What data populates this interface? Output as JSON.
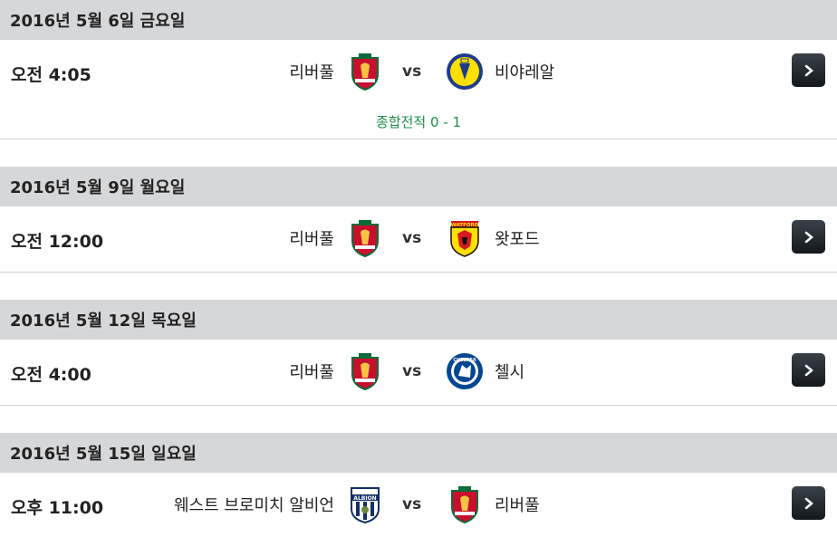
{
  "days": [
    {
      "date": "2016년 5월 6일 금요일",
      "time": "오전 4:05",
      "home": "리버풀",
      "home_logo": "liverpool-crest-icon",
      "vs": "vs",
      "away": "비야레알",
      "away_logo": "villarreal-crest-icon",
      "record": "종합전적 0 - 1"
    },
    {
      "date": "2016년 5월 9일 월요일",
      "time": "오전 12:00",
      "home": "리버풀",
      "home_logo": "liverpool-crest-icon",
      "vs": "vs",
      "away": "왓포드",
      "away_logo": "watford-crest-icon",
      "away_logo_text": "WATFORD"
    },
    {
      "date": "2016년 5월 12일 목요일",
      "time": "오전 4:00",
      "home": "리버풀",
      "home_logo": "liverpool-crest-icon",
      "vs": "vs",
      "away": "첼시",
      "away_logo": "chelsea-crest-icon",
      "away_logo_text": "CHELSEA"
    },
    {
      "date": "2016년 5월 15일 일요일",
      "time": "오후 11:00",
      "home": "웨스트 브로미치 알비언",
      "home_logo": "west-brom-crest-icon",
      "home_logo_text": "ALBION",
      "vs": "vs",
      "away": "리버풀",
      "away_logo": "liverpool-crest-icon"
    }
  ],
  "colors": {
    "date_bar": "#d5d7d9",
    "record_text": "#1a8f4a",
    "button": "#1c2126"
  },
  "button_icon": "chevron-right-icon"
}
